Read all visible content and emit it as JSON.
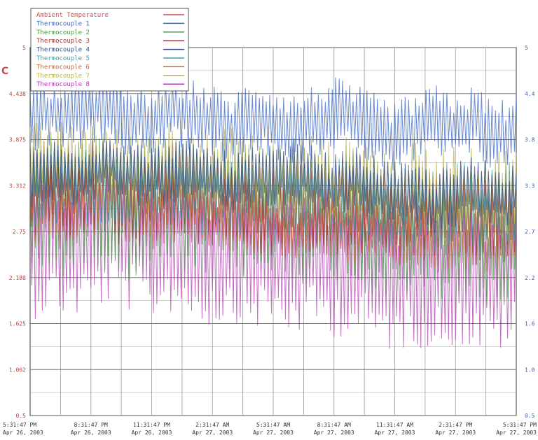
{
  "chart_data": {
    "type": "line",
    "title": "",
    "ylabel": "C",
    "xlabel": "",
    "ylim": [
      0.5,
      5
    ],
    "grid": true,
    "legend_position": "top-left",
    "y_ticks": [
      "0.5",
      "1.062",
      "1.625",
      "2.188",
      "2.75",
      "3.312",
      "3.875",
      "4.438",
      "5"
    ],
    "y_ticks_right": [
      "0.5",
      "1.0",
      "1.6",
      "2.2",
      "2.7",
      "3.3",
      "3.8",
      "4.4",
      "5"
    ],
    "x_tick_times": [
      "5:31:47 PM",
      "8:31:47 PM",
      "11:31:47 PM",
      "2:31:47 AM",
      "5:31:47 AM",
      "8:31:47 AM",
      "11:31:47 AM",
      "2:31:47 PM",
      "5:31:47 PM"
    ],
    "x_tick_dates": [
      "Apr 26, 2003",
      "Apr 26, 2003",
      "Apr 26, 2003",
      "Apr 27, 2003",
      "Apr 27, 2003",
      "Apr 27, 2003",
      "Apr 27, 2003",
      "Apr 27, 2003",
      "Apr 27, 2003"
    ],
    "series": [
      {
        "name": "Ambient Temperature",
        "color": "#d04848",
        "values": [
          3.0,
          3.1,
          3.0,
          3.1,
          3.2,
          3.1,
          3.0,
          3.1,
          3.0,
          2.9,
          2.9,
          2.8,
          2.8,
          2.7,
          2.8,
          2.9,
          2.8,
          2.8,
          2.7,
          2.8,
          2.9,
          3.0,
          2.9,
          3.0,
          3.0
        ]
      },
      {
        "name": "Thermocouple 1",
        "color": "#3a64c0",
        "values": [
          4.1,
          4.2,
          4.1,
          4.3,
          4.2,
          4.1,
          4.1,
          4.2,
          4.2,
          4.1,
          4.0,
          4.2,
          4.1,
          4.0,
          4.1,
          4.2,
          4.1,
          4.0,
          3.9,
          4.0,
          4.1,
          4.0,
          4.1,
          3.9,
          4.0
        ]
      },
      {
        "name": "Thermocouple 2",
        "color": "#4a9a4a",
        "values": [
          3.0,
          3.1,
          3.0,
          3.2,
          3.1,
          3.0,
          3.1,
          3.1,
          3.0,
          3.0,
          3.1,
          2.9,
          3.0,
          3.0,
          2.9,
          3.0,
          2.9,
          2.8,
          2.8,
          2.7,
          2.7,
          2.8,
          2.7,
          2.6,
          2.7
        ]
      },
      {
        "name": "Thermocouple 3",
        "color": "#9a3a3a",
        "values": [
          3.2,
          3.3,
          3.2,
          3.3,
          3.2,
          3.1,
          3.2,
          3.3,
          3.2,
          3.1,
          3.2,
          3.1,
          3.0,
          3.1,
          3.1,
          3.0,
          3.1,
          3.0,
          2.9,
          3.0,
          2.9,
          3.0,
          2.9,
          2.9,
          3.0
        ]
      },
      {
        "name": "Thermocouple 4",
        "color": "#2a4a8a",
        "values": [
          3.4,
          3.5,
          3.4,
          3.5,
          3.6,
          3.5,
          3.4,
          3.5,
          3.5,
          3.4,
          3.3,
          3.4,
          3.4,
          3.5,
          3.4,
          3.3,
          3.4,
          3.3,
          3.2,
          3.2,
          3.1,
          3.2,
          3.3,
          3.2,
          3.2
        ]
      },
      {
        "name": "Thermocouple 5",
        "color": "#3aa0a0",
        "values": [
          3.3,
          3.4,
          3.3,
          3.4,
          3.3,
          3.2,
          3.3,
          3.4,
          3.3,
          3.2,
          3.3,
          3.2,
          3.1,
          3.2,
          3.2,
          3.1,
          3.2,
          3.1,
          3.0,
          3.1,
          3.0,
          3.1,
          3.0,
          3.0,
          3.1
        ]
      },
      {
        "name": "Thermocouple 6",
        "color": "#c06a3a",
        "values": [
          3.1,
          3.2,
          3.1,
          3.2,
          3.3,
          3.2,
          3.1,
          3.2,
          3.2,
          3.1,
          3.0,
          3.1,
          3.1,
          3.0,
          3.1,
          3.0,
          2.9,
          3.0,
          2.9,
          2.8,
          2.9,
          2.8,
          2.9,
          2.8,
          2.9
        ]
      },
      {
        "name": "Thermocouple 7",
        "color": "#b8b050",
        "values": [
          3.5,
          3.6,
          3.5,
          3.6,
          3.5,
          3.4,
          3.5,
          3.6,
          3.5,
          3.4,
          3.5,
          3.4,
          3.3,
          3.4,
          3.4,
          3.3,
          3.4,
          3.3,
          3.2,
          3.3,
          3.2,
          3.3,
          3.2,
          3.2,
          3.3
        ]
      },
      {
        "name": "Thermocouple 8",
        "color": "#b040b0",
        "values": [
          2.6,
          2.7,
          2.6,
          2.7,
          2.8,
          2.7,
          2.6,
          2.7,
          2.6,
          2.5,
          2.6,
          2.5,
          2.5,
          2.4,
          2.5,
          2.4,
          2.4,
          2.3,
          2.2,
          2.3,
          2.2,
          2.3,
          2.2,
          2.2,
          2.3
        ]
      }
    ]
  }
}
